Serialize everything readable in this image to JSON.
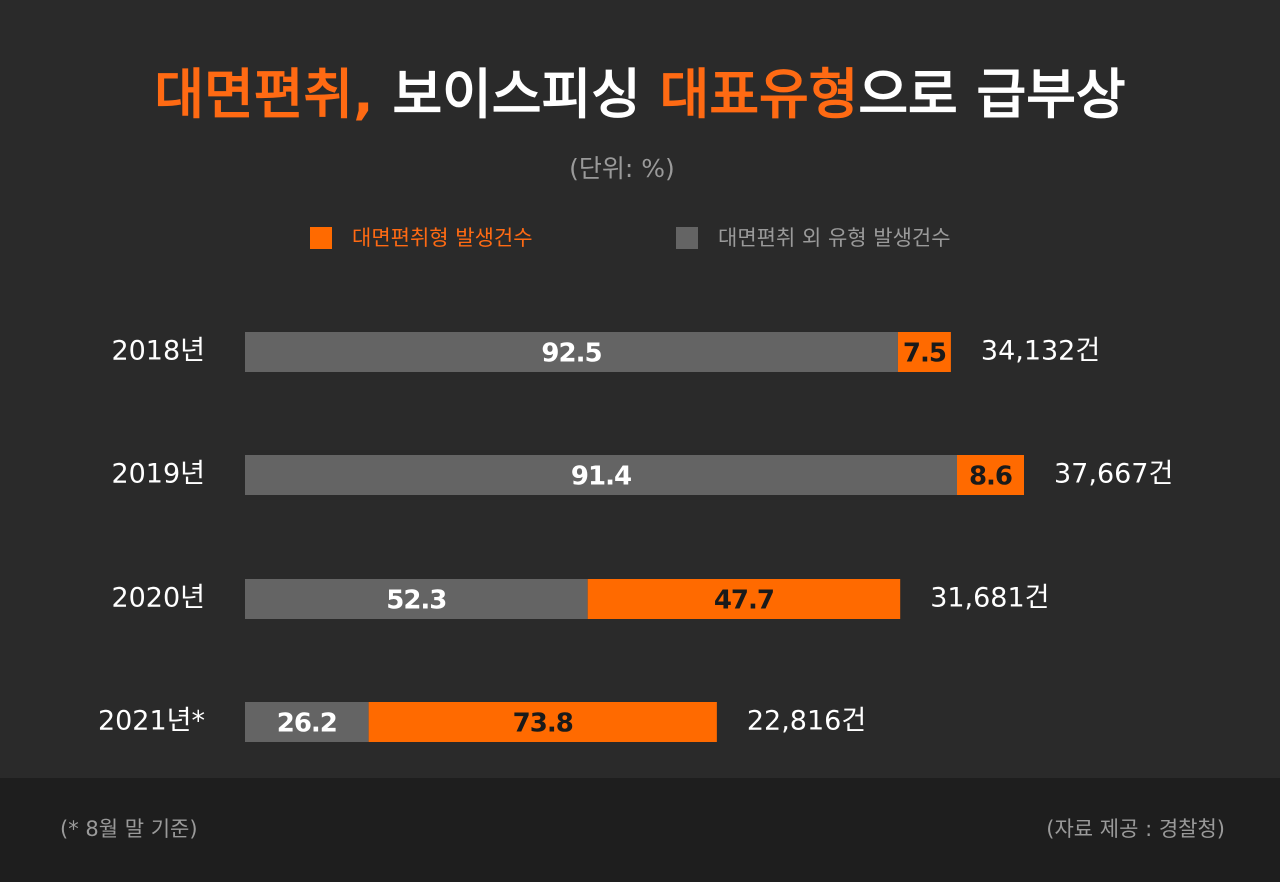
{
  "chart_data": {
    "type": "bar",
    "title_parts": [
      {
        "text": "대면편취,",
        "color": "#ff6a13"
      },
      {
        "text": " 보이스피싱 ",
        "color": "#ffffff"
      },
      {
        "text": "대표유형",
        "color": "#ff6a13"
      },
      {
        "text": "으로 급부상",
        "color": "#ffffff"
      }
    ],
    "subtitle": "(단위: %)",
    "categories": [
      "2018년",
      "2019년",
      "2020년",
      "2021년*"
    ],
    "series": [
      {
        "name": "대면편취 외 유형 발생건수",
        "color": "#646464",
        "values": [
          92.5,
          91.4,
          52.3,
          26.2
        ]
      },
      {
        "name": "대면편취형 발생건수",
        "color": "#ff6a00",
        "values": [
          7.5,
          8.6,
          47.7,
          73.8
        ]
      }
    ],
    "totals": [
      34132,
      37667,
      31681,
      22816
    ],
    "total_labels": [
      "34,132건",
      "37,667건",
      "31,681건",
      "22,816건"
    ],
    "footnote": "(* 8월 말 기준)",
    "source": "(자료 제공 : 경찰청)"
  }
}
